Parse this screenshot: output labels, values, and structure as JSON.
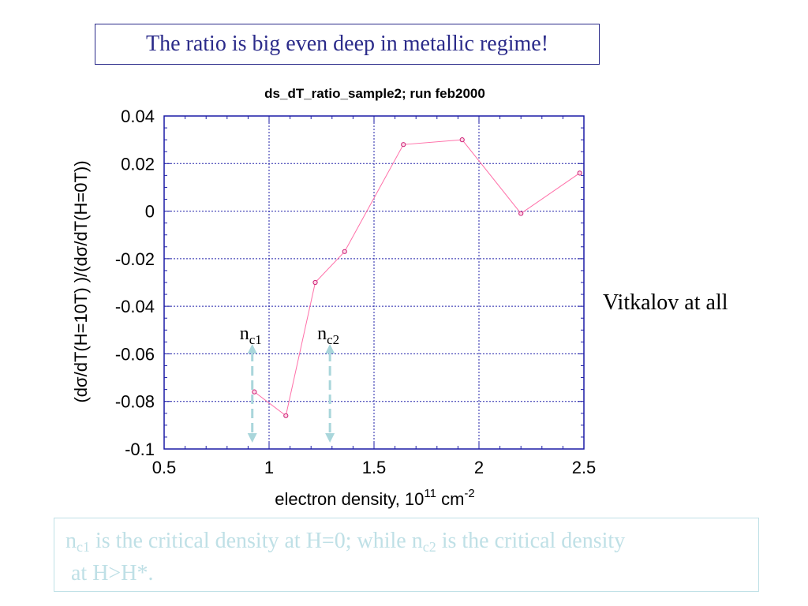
{
  "headline": "The ratio is big even deep in metallic regime!",
  "credit": "Vitkalov at all",
  "note": {
    "n": "n",
    "sub1": "c1",
    "text1": " is the critical density at H=0; while n",
    "sub2": "c2",
    "text2": " is the critical density",
    "text3": "at H>H*."
  },
  "colors": {
    "headline": "#2b2b8a",
    "note": "#bfe0e6",
    "series": "#ff6fa8",
    "markers": "#cc2277",
    "axes": "#1a1aa6",
    "grid": "#2222aa",
    "arrows": "#a9d6db"
  },
  "chart_data": {
    "type": "line",
    "title": "ds_dT_ratio_sample2; run feb2000",
    "ylabel": "(dσ/dT(H=10T) )/(dσ/dT(H=0T))",
    "xlabel_main": "electron density, 10",
    "xlabel_exp1": "11",
    "xlabel_unit": " cm",
    "xlabel_exp2": "-2",
    "xlim": [
      0.5,
      2.5
    ],
    "ylim": [
      -0.1,
      0.04
    ],
    "xticks": [
      "0.5",
      "1",
      "1.5",
      "2",
      "2.5"
    ],
    "yticks": [
      "0.04",
      "0.02",
      "0",
      "-0.02",
      "-0.04",
      "-0.06",
      "-0.08",
      "-0.1"
    ],
    "grid": true,
    "x": [
      0.93,
      1.08,
      1.22,
      1.36,
      1.64,
      1.92,
      2.2,
      2.48
    ],
    "y": [
      -0.076,
      -0.086,
      -0.03,
      -0.017,
      0.028,
      0.03,
      -0.001,
      0.016
    ],
    "annotations": [
      {
        "label": "n",
        "sub": "c1",
        "x": 0.92
      },
      {
        "label": "n",
        "sub": "c2",
        "x": 1.29
      }
    ]
  }
}
